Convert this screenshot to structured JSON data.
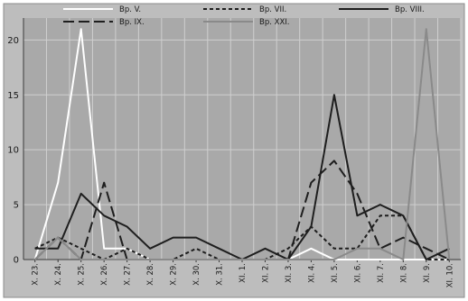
{
  "chart_data": {
    "type": "line",
    "title": "",
    "xlabel": "",
    "ylabel": "",
    "ylim": [
      0,
      22
    ],
    "yticks": [
      0,
      5,
      10,
      15,
      20
    ],
    "grid": true,
    "legend_position": "top",
    "categories": [
      "X. 23.",
      "X. 24.",
      "X. 25.",
      "X. 26.",
      "X. 27.",
      "X. 28.",
      "X. 29.",
      "X. 30.",
      "X. 31.",
      "XI. 1.",
      "XI. 2.",
      "XI. 3.",
      "XI. 4.",
      "XI. 5.",
      "XI. 6.",
      "XI. 7.",
      "XI. 8.",
      "XI. 9.",
      "XI. 10."
    ],
    "series": [
      {
        "name": "Bp. V.",
        "color": "#ffffff",
        "dash": "solid",
        "values": [
          0,
          7,
          21,
          1,
          1,
          0,
          0,
          0,
          0,
          0,
          0,
          0,
          1,
          0,
          0,
          0,
          0,
          0,
          0
        ]
      },
      {
        "name": "Bp. VII.",
        "color": "#1e1e1e",
        "dash": "short-dash",
        "values": [
          1,
          2,
          1,
          0,
          1,
          0,
          0,
          1,
          0,
          0,
          0,
          1,
          3,
          1,
          1,
          4,
          4,
          0,
          0
        ]
      },
      {
        "name": "Bp. VIII.",
        "color": "#1e1e1e",
        "dash": "solid",
        "values": [
          1,
          1,
          6,
          4,
          3,
          1,
          2,
          2,
          1,
          0,
          1,
          0,
          3,
          15,
          4,
          5,
          4,
          0,
          1
        ]
      },
      {
        "name": "Bp. IX.",
        "color": "#1e1e1e",
        "dash": "long-dash",
        "values": [
          0,
          2,
          0,
          7,
          0,
          0,
          0,
          0,
          0,
          0,
          0,
          0,
          7,
          9,
          6,
          1,
          2,
          1,
          0
        ]
      },
      {
        "name": "Bp. XXI.",
        "color": "#8a8a8a",
        "dash": "solid",
        "values": [
          0,
          2,
          0,
          0,
          0,
          0,
          0,
          0,
          0,
          0,
          0,
          0,
          0,
          0,
          1,
          1,
          0,
          21,
          0
        ]
      }
    ]
  }
}
